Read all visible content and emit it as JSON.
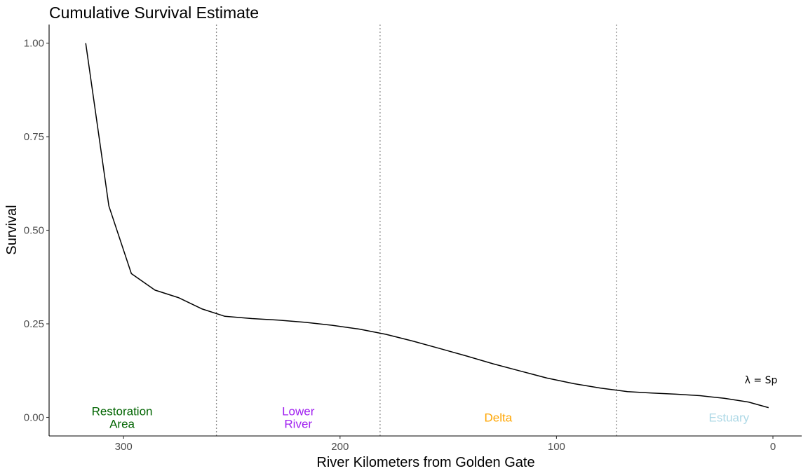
{
  "chart_data": {
    "type": "line",
    "title": "Cumulative Survival Estimate",
    "xlabel": "River Kilometers from Golden Gate",
    "ylabel": "Survival",
    "xlim": [
      0,
      330
    ],
    "ylim": [
      0,
      1
    ],
    "x_reversed": true,
    "x_ticks": [
      {
        "value": 300,
        "label": "300"
      },
      {
        "value": 200,
        "label": "200"
      },
      {
        "value": 100,
        "label": "100"
      },
      {
        "value": 0,
        "label": "0"
      }
    ],
    "y_ticks": [
      {
        "value": 0,
        "label": "0.00"
      },
      {
        "value": 0.25,
        "label": "0.25"
      },
      {
        "value": 0.5,
        "label": "0.50"
      },
      {
        "value": 0.75,
        "label": "0.75"
      },
      {
        "value": 1,
        "label": "1.00"
      }
    ],
    "grid": false,
    "series": [
      {
        "color": "#000000",
        "x": [
          317.5,
          306.8,
          296.4,
          285.5,
          274.7,
          263.9,
          253.2,
          240.8,
          228.4,
          216.0,
          203.6,
          191.2,
          178.8,
          166.4,
          154.0,
          141.6,
          129.2,
          116.8,
          104.4,
          92.0,
          79.6,
          67.2,
          56.0,
          44.8,
          33.7,
          22.5,
          11.3,
          2.0
        ],
        "y": [
          1.0,
          0.565,
          0.384,
          0.34,
          0.32,
          0.29,
          0.27,
          0.264,
          0.26,
          0.254,
          0.246,
          0.236,
          0.222,
          0.204,
          0.184,
          0.164,
          0.143,
          0.124,
          0.105,
          0.09,
          0.078,
          0.069,
          0.065,
          0.062,
          0.058,
          0.051,
          0.041,
          0.026
        ]
      }
    ],
    "region_boundaries": [
      257.1,
      181.5,
      72.3
    ],
    "regions": [
      {
        "lines": [
          "Restoration",
          "Area"
        ],
        "color": "#006400",
        "x": 300.7,
        "y": 0.0
      },
      {
        "lines": [
          "Lower",
          "River"
        ],
        "color": "#a020f0",
        "x": 219.3,
        "y": 0.0
      },
      {
        "lines": [
          "Delta"
        ],
        "color": "#ffa500",
        "x": 126.9,
        "y": 0.0
      },
      {
        "lines": [
          "Estuary"
        ],
        "color": "#add8e6",
        "x": 20.3,
        "y": 0.0
      }
    ],
    "annotations": [
      {
        "text": "λ = Sp",
        "x": 5.5,
        "y": 0.1
      }
    ]
  }
}
